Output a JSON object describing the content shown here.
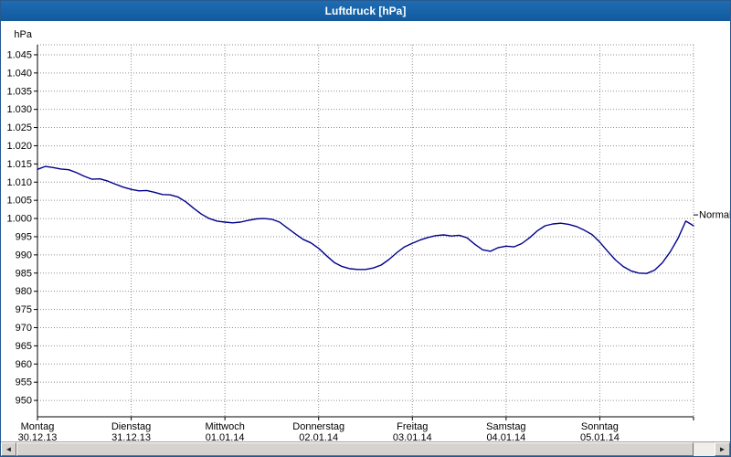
{
  "window": {
    "title": "Luftdruck [hPa]"
  },
  "chart_data": {
    "type": "line",
    "title": "Luftdruck [hPa]",
    "ylabel": "hPa",
    "unit": "hPa",
    "line_color": "#00008b",
    "grid": true,
    "legend_position": "none",
    "ylim": [
      945.5,
      1047.75
    ],
    "x_hours_total": 168,
    "sample_hours": 2,
    "y_ticks": [
      {
        "label": "1.045",
        "value": 1045
      },
      {
        "label": "1.040",
        "value": 1040
      },
      {
        "label": "1.035",
        "value": 1035
      },
      {
        "label": "1.030",
        "value": 1030
      },
      {
        "label": "1.025",
        "value": 1025
      },
      {
        "label": "1.020",
        "value": 1020
      },
      {
        "label": "1.015",
        "value": 1015
      },
      {
        "label": "1.010",
        "value": 1010
      },
      {
        "label": "1.005",
        "value": 1005
      },
      {
        "label": "1.000",
        "value": 1000
      },
      {
        "label": "995",
        "value": 995
      },
      {
        "label": "990",
        "value": 990
      },
      {
        "label": "985",
        "value": 985
      },
      {
        "label": "980",
        "value": 980
      },
      {
        "label": "975",
        "value": 975
      },
      {
        "label": "970",
        "value": 970
      },
      {
        "label": "965",
        "value": 965
      },
      {
        "label": "960",
        "value": 960
      },
      {
        "label": "955",
        "value": 955
      },
      {
        "label": "950",
        "value": 950
      }
    ],
    "x_days": [
      {
        "day": "Montag",
        "date": "30.12.13"
      },
      {
        "day": "Dienstag",
        "date": "31.12.13"
      },
      {
        "day": "Mittwoch",
        "date": "01.01.14"
      },
      {
        "day": "Donnerstag",
        "date": "02.01.14"
      },
      {
        "day": "Freitag",
        "date": "03.01.14"
      },
      {
        "day": "Samstag",
        "date": "04.01.14"
      },
      {
        "day": "Sonntag",
        "date": "05.01.14"
      }
    ],
    "normal_marker": {
      "label": "Normal",
      "value": 1001
    },
    "series": [
      {
        "name": "Luftdruck",
        "values": [
          1013.5,
          1014.3,
          1014.0,
          1013.6,
          1013.4,
          1012.6,
          1011.6,
          1010.8,
          1010.9,
          1010.3,
          1009.4,
          1008.6,
          1008.0,
          1007.6,
          1007.7,
          1007.2,
          1006.6,
          1006.5,
          1005.9,
          1004.6,
          1002.8,
          1001.2,
          1000.0,
          999.3,
          999.0,
          998.8,
          999.0,
          999.5,
          999.9,
          1000.0,
          999.8,
          999.0,
          997.4,
          995.8,
          994.3,
          993.3,
          991.8,
          989.8,
          987.9,
          986.8,
          986.2,
          986.0,
          986.0,
          986.4,
          987.2,
          988.7,
          990.6,
          992.2,
          993.2,
          994.1,
          994.8,
          995.3,
          995.5,
          995.2,
          995.4,
          994.7,
          992.9,
          991.4,
          991.0,
          992.0,
          992.4,
          992.2,
          993.1,
          994.7,
          996.6,
          998.0,
          998.5,
          998.7,
          998.4,
          997.8,
          996.8,
          995.6,
          993.5,
          991.0,
          988.6,
          986.8,
          985.6,
          985.0,
          984.9,
          985.8,
          987.8,
          990.8,
          994.5,
          999.3,
          998.0
        ]
      }
    ]
  },
  "scrollbar": {
    "left_arrow": "◄",
    "right_arrow": "►"
  }
}
